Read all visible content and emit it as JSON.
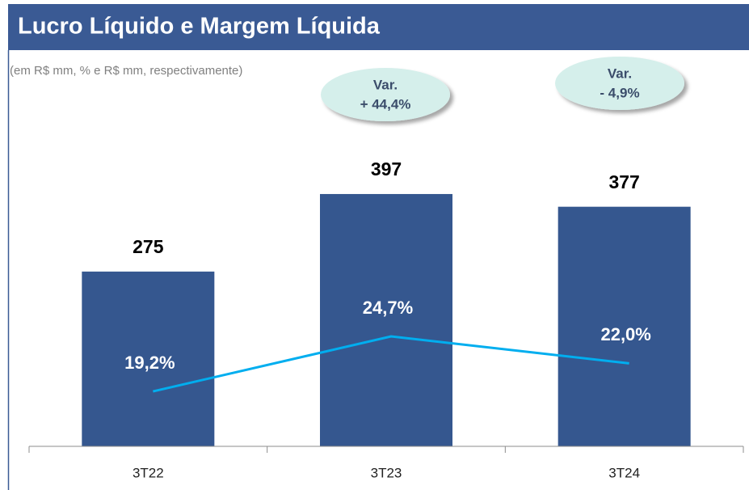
{
  "chart_data": {
    "type": "bar",
    "title": "Lucro Líquido e Margem Líquida",
    "subtitle": "(em R$ mm, % e R$ mm, respectivamente)",
    "categories": [
      "3T22",
      "3T23",
      "3T24"
    ],
    "ylim": [
      0,
      500
    ],
    "y2lim": [
      13.7,
      45.5
    ],
    "series": [
      {
        "type": "bar",
        "color": "#35578f",
        "values": [
          275,
          397,
          377
        ]
      },
      {
        "type": "line",
        "axis": "y2",
        "color": "#00aeef",
        "values": [
          19.2,
          24.7,
          22.0
        ],
        "value_labels": [
          "19,2%",
          "24,7%",
          "22,0%"
        ]
      }
    ],
    "annotations": [
      {
        "lines": [
          "Var.",
          "+ 44,4%"
        ]
      },
      {
        "lines": [
          "Var.",
          "- 4,9%"
        ]
      }
    ]
  }
}
